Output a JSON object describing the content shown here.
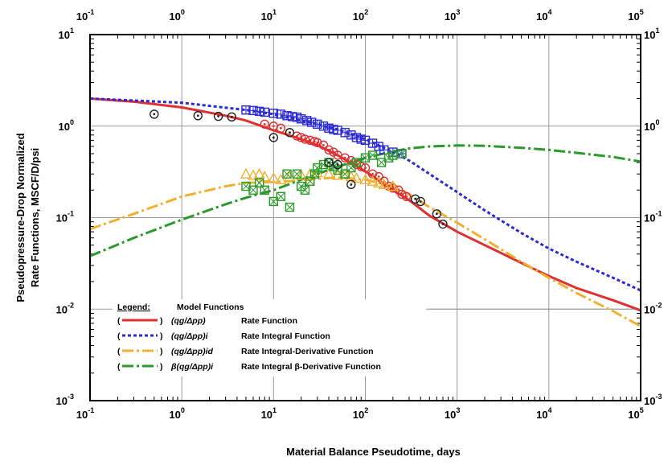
{
  "chart_data": {
    "type": "line",
    "xlabel": "Material Balance Pseudotime, days",
    "ylabel": [
      "Pseudopressure-Drop Normalized",
      "Rate Functions, MSCF/D/psi"
    ],
    "x_scale": "log",
    "y_scale": "log",
    "xlim": [
      0.1,
      100000
    ],
    "ylim": [
      0.001,
      10
    ],
    "grid": true,
    "x_ticks": [
      {
        "v": 0.1,
        "base": "10",
        "exp": "-1"
      },
      {
        "v": 1,
        "base": "10",
        "exp": "0"
      },
      {
        "v": 10,
        "base": "10",
        "exp": "1"
      },
      {
        "v": 100,
        "base": "10",
        "exp": "2"
      },
      {
        "v": 1000,
        "base": "10",
        "exp": "3"
      },
      {
        "v": 10000,
        "base": "10",
        "exp": "4"
      },
      {
        "v": 100000,
        "base": "10",
        "exp": "5"
      }
    ],
    "y_ticks": [
      {
        "v": 0.001,
        "base": "10",
        "exp": "-3"
      },
      {
        "v": 0.01,
        "base": "10",
        "exp": "-2"
      },
      {
        "v": 0.1,
        "base": "10",
        "exp": "-1"
      },
      {
        "v": 1,
        "base": "10",
        "exp": "0"
      },
      {
        "v": 10,
        "base": "10",
        "exp": "1"
      }
    ],
    "legend": {
      "placement": "bottom-left",
      "heading": "Legend:",
      "subheading": "Model Functions",
      "entries": [
        {
          "open": "(",
          "close": ")",
          "formula": "(qg/Δpp)",
          "desc": "Rate Function",
          "color": "#e03030",
          "dash": ""
        },
        {
          "open": "(",
          "close": ")",
          "formula": "(qg/Δpp)i",
          "desc": "Rate Integral Function",
          "color": "#2a2ad8",
          "dash": "4,3"
        },
        {
          "open": "(",
          "close": ")",
          "formula": "(qg/Δpp)id",
          "desc": "Rate Integral-Derivative Function",
          "color": "#f0b030",
          "dash": "14,4,3,4"
        },
        {
          "open": "(",
          "close": ")",
          "formula": "β(qg/Δpp)i",
          "desc": "Rate Integral β-Derivative Function",
          "color": "#2a9a2a",
          "dash": "14,4,3,4"
        }
      ]
    },
    "model_series": [
      {
        "name": "Rate Function",
        "color": "#e03030",
        "dash": "",
        "x": [
          0.1,
          0.3,
          1,
          3,
          5,
          10,
          20,
          30,
          50,
          100,
          200,
          300,
          500,
          1000,
          2000,
          5000,
          10000,
          20000,
          50000,
          100000
        ],
        "y": [
          2.0,
          1.85,
          1.6,
          1.3,
          1.15,
          0.9,
          0.72,
          0.62,
          0.48,
          0.32,
          0.2,
          0.155,
          0.105,
          0.07,
          0.05,
          0.032,
          0.023,
          0.017,
          0.0125,
          0.0097
        ]
      },
      {
        "name": "Rate Integral Function",
        "color": "#2a2ad8",
        "dash": "4,3",
        "x": [
          0.1,
          1,
          5,
          10,
          30,
          50,
          100,
          200,
          300,
          500,
          1000,
          2000,
          5000,
          10000,
          20000,
          50000,
          100000
        ],
        "y": [
          2.0,
          1.8,
          1.5,
          1.35,
          1.05,
          0.92,
          0.72,
          0.52,
          0.42,
          0.3,
          0.19,
          0.12,
          0.068,
          0.046,
          0.033,
          0.022,
          0.016
        ]
      },
      {
        "name": "Rate Integral-Derivative Function",
        "color": "#f0b030",
        "dash": "14,4,3,4",
        "x": [
          0.1,
          0.3,
          1,
          3,
          5,
          10,
          20,
          30,
          50,
          100,
          200,
          300,
          500,
          1000,
          2000,
          5000,
          10000,
          20000,
          50000,
          100000
        ],
        "y": [
          0.075,
          0.11,
          0.17,
          0.22,
          0.24,
          0.245,
          0.255,
          0.265,
          0.275,
          0.26,
          0.22,
          0.18,
          0.13,
          0.088,
          0.058,
          0.033,
          0.022,
          0.015,
          0.0095,
          0.0065
        ]
      },
      {
        "name": "Rate Integral β-Derivative Function",
        "color": "#2a9a2a",
        "dash": "14,4,3,4",
        "x": [
          0.1,
          0.3,
          1,
          3,
          5,
          10,
          20,
          30,
          50,
          100,
          200,
          300,
          500,
          1000,
          2000,
          5000,
          10000,
          20000,
          50000,
          100000
        ],
        "y": [
          0.038,
          0.06,
          0.095,
          0.14,
          0.165,
          0.2,
          0.26,
          0.3,
          0.36,
          0.45,
          0.53,
          0.57,
          0.6,
          0.615,
          0.61,
          0.58,
          0.55,
          0.51,
          0.46,
          0.41
        ]
      }
    ],
    "data_series": [
      {
        "name": "rate-data",
        "marker": "circle-dot",
        "color": "#e03030",
        "points": [
          [
            8,
            1.05
          ],
          [
            10,
            1.0
          ],
          [
            12,
            0.95
          ],
          [
            15,
            0.85
          ],
          [
            18,
            0.78
          ],
          [
            20,
            0.75
          ],
          [
            22,
            0.72
          ],
          [
            25,
            0.7
          ],
          [
            28,
            0.68
          ],
          [
            30,
            0.66
          ],
          [
            35,
            0.62
          ],
          [
            40,
            0.55
          ],
          [
            45,
            0.52
          ],
          [
            50,
            0.48
          ],
          [
            60,
            0.45
          ],
          [
            70,
            0.42
          ],
          [
            80,
            0.38
          ],
          [
            90,
            0.36
          ],
          [
            100,
            0.35
          ],
          [
            120,
            0.3
          ],
          [
            140,
            0.28
          ],
          [
            160,
            0.25
          ],
          [
            180,
            0.22
          ],
          [
            200,
            0.21
          ],
          [
            230,
            0.2
          ],
          [
            250,
            0.18
          ],
          [
            280,
            0.17
          ]
        ]
      },
      {
        "name": "rate-integral-data",
        "marker": "square-plus",
        "color": "#2a2ad8",
        "points": [
          [
            5,
            1.5
          ],
          [
            6,
            1.48
          ],
          [
            7,
            1.45
          ],
          [
            8,
            1.42
          ],
          [
            10,
            1.38
          ],
          [
            12,
            1.35
          ],
          [
            14,
            1.3
          ],
          [
            16,
            1.27
          ],
          [
            18,
            1.25
          ],
          [
            20,
            1.2
          ],
          [
            23,
            1.15
          ],
          [
            26,
            1.1
          ],
          [
            30,
            1.05
          ],
          [
            35,
            1.0
          ],
          [
            40,
            0.95
          ],
          [
            45,
            0.92
          ],
          [
            50,
            0.9
          ],
          [
            60,
            0.85
          ],
          [
            70,
            0.8
          ],
          [
            80,
            0.75
          ],
          [
            90,
            0.72
          ],
          [
            100,
            0.7
          ],
          [
            120,
            0.65
          ],
          [
            140,
            0.6
          ],
          [
            160,
            0.55
          ],
          [
            200,
            0.52
          ],
          [
            250,
            0.5
          ]
        ]
      },
      {
        "name": "integral-derivative-data",
        "marker": "triangle",
        "color": "#f0b030",
        "points": [
          [
            5,
            0.3
          ],
          [
            6,
            0.29
          ],
          [
            7,
            0.3
          ],
          [
            8,
            0.28
          ],
          [
            10,
            0.27
          ],
          [
            12,
            0.26
          ],
          [
            15,
            0.28
          ],
          [
            20,
            0.29
          ],
          [
            25,
            0.3
          ],
          [
            30,
            0.31
          ],
          [
            40,
            0.3
          ],
          [
            50,
            0.29
          ],
          [
            60,
            0.3
          ],
          [
            70,
            0.28
          ],
          [
            80,
            0.27
          ],
          [
            100,
            0.26
          ],
          [
            120,
            0.25
          ],
          [
            140,
            0.24
          ],
          [
            160,
            0.23
          ],
          [
            200,
            0.22
          ]
        ]
      },
      {
        "name": "beta-derivative-data",
        "marker": "square-x",
        "color": "#2a9a2a",
        "points": [
          [
            5,
            0.22
          ],
          [
            6,
            0.2
          ],
          [
            7,
            0.24
          ],
          [
            8,
            0.2
          ],
          [
            10,
            0.15
          ],
          [
            12,
            0.17
          ],
          [
            14,
            0.3
          ],
          [
            15,
            0.13
          ],
          [
            18,
            0.3
          ],
          [
            20,
            0.22
          ],
          [
            22,
            0.2
          ],
          [
            25,
            0.25
          ],
          [
            28,
            0.3
          ],
          [
            30,
            0.35
          ],
          [
            35,
            0.38
          ],
          [
            40,
            0.4
          ],
          [
            45,
            0.36
          ],
          [
            50,
            0.33
          ],
          [
            60,
            0.3
          ],
          [
            70,
            0.35
          ],
          [
            80,
            0.4
          ],
          [
            100,
            0.45
          ],
          [
            120,
            0.48
          ],
          [
            150,
            0.4
          ],
          [
            180,
            0.45
          ],
          [
            200,
            0.48
          ],
          [
            250,
            0.5
          ]
        ]
      },
      {
        "name": "black-data",
        "marker": "circle-dot",
        "color": "#222222",
        "points": [
          [
            0.5,
            1.35
          ],
          [
            1.5,
            1.3
          ],
          [
            2.5,
            1.28
          ],
          [
            3.5,
            1.26
          ],
          [
            10,
            0.75
          ],
          [
            15,
            0.85
          ],
          [
            40,
            0.4
          ],
          [
            50,
            0.38
          ],
          [
            70,
            0.23
          ],
          [
            350,
            0.16
          ],
          [
            400,
            0.15
          ],
          [
            600,
            0.11
          ],
          [
            700,
            0.085
          ]
        ]
      }
    ]
  }
}
